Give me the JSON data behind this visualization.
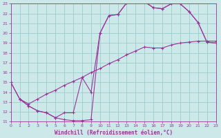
{
  "xlabel": "Windchill (Refroidissement éolien,°C)",
  "bg_color": "#cce8e8",
  "line_color": "#993399",
  "grid_color": "#99cccc",
  "xlim": [
    0,
    23
  ],
  "ylim": [
    11,
    23
  ],
  "xticks": [
    0,
    1,
    2,
    3,
    4,
    5,
    6,
    7,
    8,
    9,
    10,
    11,
    12,
    13,
    14,
    15,
    16,
    17,
    18,
    19,
    20,
    21,
    22,
    23
  ],
  "yticks": [
    11,
    12,
    13,
    14,
    15,
    16,
    17,
    18,
    19,
    20,
    21,
    22,
    23
  ],
  "curve1_x": [
    0,
    1,
    2,
    3,
    4,
    5,
    6,
    7,
    8,
    9,
    10,
    11,
    12,
    13,
    14,
    15,
    16,
    17,
    18,
    19,
    20,
    21,
    22,
    23
  ],
  "curve1_y": [
    15.0,
    13.3,
    12.6,
    12.1,
    11.9,
    11.4,
    11.2,
    11.1,
    11.1,
    11.2,
    20.0,
    21.8,
    21.9,
    23.1,
    23.2,
    23.2,
    22.6,
    22.5,
    23.0,
    23.0,
    22.2,
    21.1,
    19.1,
    19.0
  ],
  "curve2_x": [
    0,
    1,
    2,
    3,
    4,
    5,
    6,
    7,
    8,
    9,
    10,
    11,
    12,
    13,
    14,
    15,
    16,
    17,
    18,
    19,
    20,
    21,
    22,
    23
  ],
  "curve2_y": [
    15.0,
    13.3,
    12.8,
    13.3,
    13.8,
    14.2,
    14.7,
    15.1,
    15.5,
    16.0,
    16.4,
    16.9,
    17.3,
    17.8,
    18.2,
    18.6,
    18.5,
    18.5,
    18.8,
    19.0,
    19.1,
    19.2,
    19.2,
    19.2
  ],
  "curve3_x": [
    1,
    2,
    3,
    4,
    5,
    6,
    7,
    8,
    9,
    10,
    11,
    12,
    13,
    14,
    15,
    16,
    17,
    18,
    19,
    20,
    21,
    22,
    23
  ],
  "curve3_y": [
    13.3,
    12.6,
    12.1,
    11.9,
    11.4,
    11.9,
    11.9,
    15.5,
    14.0,
    20.0,
    21.8,
    21.9,
    23.1,
    23.2,
    23.2,
    22.6,
    22.5,
    23.0,
    23.0,
    22.2,
    21.1,
    19.1,
    19.0
  ]
}
